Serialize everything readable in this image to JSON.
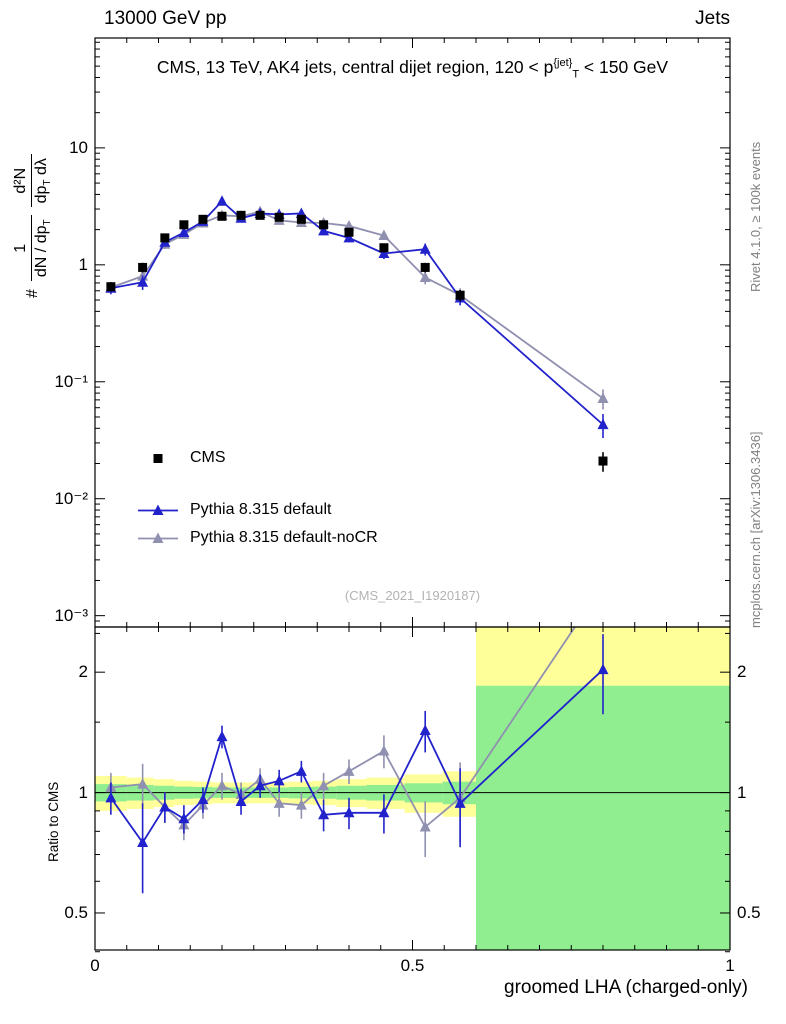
{
  "header": {
    "left": "13000 GeV pp",
    "right": "Jets"
  },
  "title": "CMS, 13 TeV, AK4 jets, central dijet region, 120 < p^[{jet}]_[T] < 150 GeV",
  "watermark": "(CMS_2021_I1920187)",
  "side_notes": {
    "top_right": "Rivet 4.1.0, ≥ 100k events",
    "bottom_right": "mcplots.cern.ch [arXiv:1306.3436]"
  },
  "colors": {
    "cms": "#000000",
    "pythia_default": "#2222cc",
    "pythia_nocr": "#9090b0",
    "band_yellow": "#ffff99",
    "band_green": "#90ee90",
    "frame": "#000000"
  },
  "axes": {
    "x": {
      "title": "groomed LHA (charged-only)",
      "min": 0,
      "max": 1,
      "major_ticks": [
        {
          "v": 0,
          "label": "0"
        },
        {
          "v": 0.5,
          "label": "0.5"
        },
        {
          "v": 1,
          "label": "1"
        }
      ],
      "minor_step": 0.05
    },
    "y_main": {
      "scale": "log",
      "major_ticks": [
        {
          "v": 10,
          "label": "10"
        },
        {
          "v": 1,
          "label": "1"
        },
        {
          "v": 0.1,
          "label": "10⁻¹"
        },
        {
          "v": 0.01,
          "label": "10⁻²"
        },
        {
          "v": 0.001,
          "label": "10⁻³"
        }
      ],
      "label": {
        "prefix": "#",
        "frac1_num": "1",
        "frac1_den": "dN / dp_[T]",
        "frac2_num": "d²N",
        "frac2_den": "dp_[T] dλ"
      }
    },
    "y_ratio": {
      "scale": "log",
      "title": "Ratio to CMS",
      "major_ticks": [
        {
          "v": 0.5,
          "label": "0.5"
        },
        {
          "v": 1,
          "label": "1"
        },
        {
          "v": 2,
          "label": "2"
        }
      ],
      "minor_ticks": [
        0.4,
        0.6,
        0.7,
        0.8,
        0.9,
        1.5,
        2.5
      ]
    }
  },
  "chart_data": [
    {
      "type": "scatter",
      "title": "CMS, 13 TeV, AK4 jets, central dijet region, 120 < pT{jet} < 150 GeV",
      "xlabel": "groomed LHA (charged-only)",
      "ylabel": "1/(dN/dpT) d²N/(dpT dλ)",
      "xlim": [
        0,
        1
      ],
      "ylim_log": [
        0.0008,
        87
      ],
      "grid": false,
      "legend_position": "middle-left",
      "x": [
        0.025,
        0.075,
        0.11,
        0.14,
        0.17,
        0.2,
        0.23,
        0.26,
        0.29,
        0.325,
        0.36,
        0.4,
        0.455,
        0.52,
        0.575,
        0.8
      ],
      "series": [
        {
          "name": "CMS",
          "marker": "square",
          "color": "#000000",
          "line": false,
          "values": [
            0.65,
            0.95,
            1.7,
            2.2,
            2.45,
            2.6,
            2.65,
            2.65,
            2.55,
            2.45,
            2.2,
            1.9,
            1.4,
            0.95,
            0.55,
            0.021
          ],
          "errors": [
            0.06,
            0.09,
            0.14,
            0.16,
            0.16,
            0.16,
            0.16,
            0.16,
            0.16,
            0.16,
            0.15,
            0.14,
            0.12,
            0.09,
            0.06,
            0.004
          ]
        },
        {
          "name": "Pythia 8.315 default",
          "marker": "triangle",
          "color": "#2222cc",
          "line": true,
          "values": [
            0.63,
            0.71,
            1.56,
            1.89,
            2.35,
            3.5,
            2.5,
            2.75,
            2.7,
            2.75,
            1.95,
            1.7,
            1.25,
            1.36,
            0.52,
            0.043
          ],
          "errors": [
            0.07,
            0.1,
            0.13,
            0.14,
            0.15,
            0.22,
            0.18,
            0.18,
            0.18,
            0.18,
            0.16,
            0.14,
            0.13,
            0.16,
            0.07,
            0.01
          ]
        },
        {
          "name": "Pythia 8.315 default-noCR",
          "marker": "triangle",
          "color": "#9090b0",
          "line": true,
          "values": [
            0.64,
            0.8,
            1.5,
            1.82,
            2.28,
            2.65,
            2.6,
            2.85,
            2.4,
            2.3,
            2.28,
            2.15,
            1.78,
            0.78,
            0.55,
            0.072
          ],
          "errors": [
            0.07,
            0.11,
            0.13,
            0.14,
            0.15,
            0.18,
            0.18,
            0.19,
            0.17,
            0.17,
            0.16,
            0.15,
            0.14,
            0.1,
            0.08,
            0.014
          ]
        }
      ]
    },
    {
      "type": "ratio",
      "xlabel": "groomed LHA (charged-only)",
      "ylabel": "Ratio to CMS",
      "xlim": [
        0,
        1
      ],
      "ylim_log": [
        0.404,
        2.594
      ],
      "x": [
        0.025,
        0.075,
        0.11,
        0.14,
        0.17,
        0.2,
        0.23,
        0.26,
        0.29,
        0.325,
        0.36,
        0.4,
        0.455,
        0.52,
        0.575,
        0.8
      ],
      "series": [
        {
          "name": "Pythia 8.315 default",
          "marker": "triangle",
          "color": "#2222cc",
          "line": true,
          "values": [
            0.97,
            0.75,
            0.92,
            0.86,
            0.96,
            1.38,
            0.95,
            1.04,
            1.07,
            1.13,
            0.88,
            0.89,
            0.89,
            1.43,
            0.94,
            2.03
          ],
          "errors": [
            0.09,
            0.19,
            0.08,
            0.07,
            0.07,
            0.09,
            0.07,
            0.07,
            0.07,
            0.07,
            0.08,
            0.08,
            0.1,
            0.17,
            0.21,
            0.46
          ]
        },
        {
          "name": "Pythia 8.315 default-noCR",
          "marker": "triangle",
          "color": "#9090b0",
          "line": true,
          "values": [
            1.03,
            1.05,
            0.92,
            0.83,
            0.93,
            1.04,
            0.99,
            1.08,
            0.94,
            0.93,
            1.04,
            1.13,
            1.27,
            0.82,
            0.97,
            3.3
          ],
          "errors": [
            0.09,
            0.13,
            0.08,
            0.07,
            0.07,
            0.08,
            0.07,
            0.07,
            0.07,
            0.07,
            0.08,
            0.08,
            0.12,
            0.13,
            0.22,
            0.6
          ]
        }
      ],
      "bands": {
        "reference": 1,
        "bin_edges": [
          0.0,
          0.05,
          0.0925,
          0.125,
          0.155,
          0.185,
          0.215,
          0.245,
          0.275,
          0.305,
          0.3425,
          0.38,
          0.4275,
          0.4875,
          0.5475,
          0.6
        ],
        "yellow_half": [
          0.1,
          0.09,
          0.08,
          0.07,
          0.065,
          0.06,
          0.06,
          0.06,
          0.06,
          0.065,
          0.07,
          0.08,
          0.09,
          0.11,
          0.13
        ],
        "green_half": [
          0.05,
          0.045,
          0.04,
          0.035,
          0.033,
          0.03,
          0.03,
          0.03,
          0.03,
          0.033,
          0.035,
          0.04,
          0.045,
          0.055,
          0.065
        ],
        "tail": {
          "x0": 0.6,
          "x1": 1.0,
          "green_top": 1.85
        }
      }
    }
  ]
}
